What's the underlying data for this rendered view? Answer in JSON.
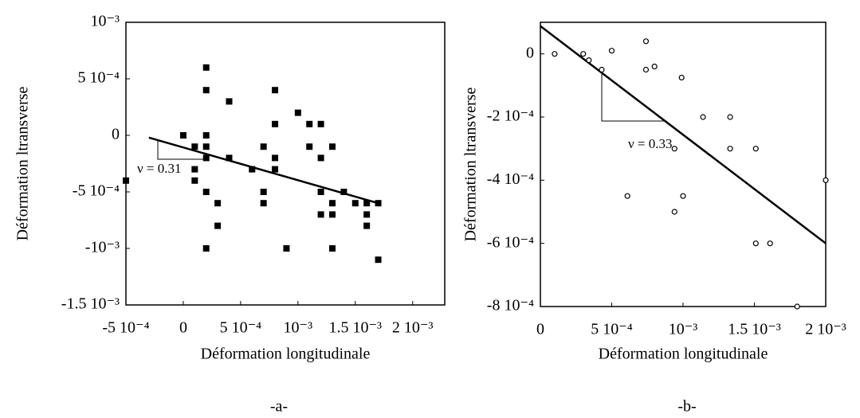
{
  "chart_data": [
    {
      "type": "scatter",
      "xlabel": "Déformation longitudinale",
      "ylabel": "Déformation ltransverse",
      "caption": "-a-",
      "annotation": "ν = 0.31",
      "marker": "square",
      "color": "#000000",
      "xlim": [
        -0.0005,
        0.00228
      ],
      "ylim": [
        -0.0015,
        0.001
      ],
      "xticks": [
        {
          "value": -0.0005,
          "label": "-5 10⁻⁴"
        },
        0,
        {
          "value": 0.0005,
          "label": "5 10⁻⁴"
        },
        {
          "value": 0.001,
          "label": "10⁻³"
        },
        {
          "value": 0.0015,
          "label": "1.5 10⁻³"
        },
        {
          "value": 0.002,
          "label": "2 10⁻³"
        }
      ],
      "yticks": [
        {
          "value": -0.0015,
          "label": "-1.5 10⁻³"
        },
        {
          "value": -0.001,
          "label": "-10⁻³"
        },
        {
          "value": -0.0005,
          "label": "-5 10⁻⁴"
        },
        0,
        {
          "value": 0.0005,
          "label": "5 10⁻⁴"
        },
        {
          "value": 0.001,
          "label": "10⁻³"
        }
      ],
      "x": [
        -0.0005,
        0,
        0.0001,
        0.0001,
        0.0001,
        0.0002,
        0.0002,
        0.0002,
        0.0002,
        0.0002,
        0.0002,
        0.0002,
        0.0003,
        0.0003,
        0.0004,
        0.0004,
        0.0006,
        0.0007,
        0.0007,
        0.0007,
        0.0008,
        0.0008,
        0.0008,
        0.0008,
        0.0009,
        0.001,
        0.0011,
        0.0011,
        0.0012,
        0.0012,
        0.0012,
        0.0012,
        0.0013,
        0.0013,
        0.0013,
        0.0013,
        0.0014,
        0.0015,
        0.0016,
        0.0016,
        0.0016,
        0.0017,
        0.0017
      ],
      "values": [
        -0.0004,
        0,
        -0.0001,
        -0.0003,
        -0.0004,
        0.0006,
        0.0004,
        0,
        -0.0001,
        -0.0002,
        -0.0005,
        -0.001,
        -0.0006,
        -0.0008,
        -0.0002,
        0.0003,
        -0.0003,
        -0.0001,
        -0.0005,
        -0.0006,
        0.0004,
        0.0001,
        -0.0002,
        -0.0003,
        -0.001,
        0.0002,
        0.0001,
        -0.0001,
        0.0001,
        -0.0002,
        -0.0005,
        -0.0007,
        -0.0001,
        -0.0006,
        -0.0007,
        -0.001,
        -0.0005,
        -0.0006,
        -0.0006,
        -0.0007,
        -0.0008,
        -0.0006,
        -0.0011
      ],
      "fit": {
        "x": [
          -0.0003,
          0.0017
        ],
        "y": [
          -2e-05,
          -0.0006
        ]
      }
    },
    {
      "type": "scatter",
      "xlabel": "Déformation longitudinale",
      "ylabel": "Déformation ltransverse",
      "caption": "-b-",
      "annotation": "ν = 0.33",
      "marker": "circle",
      "color": "#000000",
      "xlim": [
        0,
        0.002
      ],
      "ylim": [
        -0.0008,
        0.0001
      ],
      "xticks": [
        0,
        {
          "value": 0.0005,
          "label": "5 10⁻⁴"
        },
        {
          "value": 0.001,
          "label": "10⁻³"
        },
        {
          "value": 0.0015,
          "label": "1.5 10⁻³"
        },
        {
          "value": 0.002,
          "label": "2 10⁻³"
        }
      ],
      "yticks": [
        {
          "value": -0.0008,
          "label": "-8 10⁻⁴"
        },
        {
          "value": -0.0006,
          "label": "-6 10⁻⁴"
        },
        {
          "value": -0.0004,
          "label": "-4 10⁻⁴"
        },
        {
          "value": -0.0002,
          "label": "-2 10⁻⁴"
        },
        0
      ],
      "x": [
        0.0001,
        0.0003,
        0.00034,
        0.00043,
        0.0005,
        0.00061,
        0.00074,
        0.00074,
        0.0008,
        0.00094,
        0.00094,
        0.00099,
        0.001,
        0.00114,
        0.00133,
        0.00133,
        0.00151,
        0.00151,
        0.00161,
        0.0018,
        0.002
      ],
      "values": [
        0,
        0,
        -2e-05,
        -5e-05,
        1e-05,
        -0.00045,
        4e-05,
        -5e-05,
        -4e-05,
        -0.0003,
        -0.0005,
        -7.5e-05,
        -0.00045,
        -0.0002,
        -0.0002,
        -0.0003,
        -0.0003,
        -0.0006,
        -0.0006,
        -0.0008,
        -0.0004
      ],
      "fit": {
        "x": [
          0,
          0.002
        ],
        "y": [
          8.8e-05,
          -0.0006
        ]
      }
    }
  ]
}
